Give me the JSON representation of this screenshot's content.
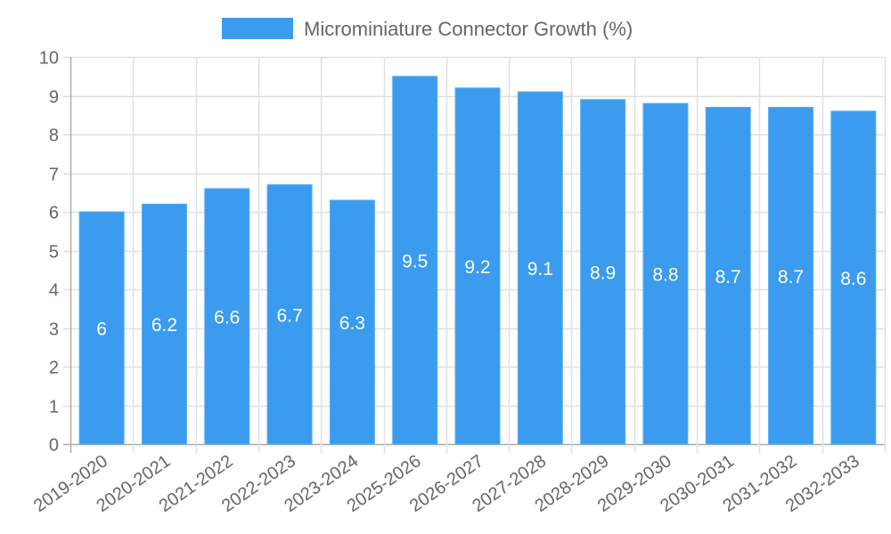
{
  "chart_data": {
    "type": "bar",
    "title": "",
    "xlabel": "",
    "ylabel": "",
    "ylim": [
      0,
      10
    ],
    "yticks": [
      0,
      1,
      2,
      3,
      4,
      5,
      6,
      7,
      8,
      9,
      10
    ],
    "grid": true,
    "legend_position": "top",
    "categories": [
      "2019-2020",
      "2020-2021",
      "2021-2022",
      "2022-2023",
      "2023-2024",
      "2025-2026",
      "2026-2027",
      "2027-2028",
      "2028-2029",
      "2029-2030",
      "2030-2031",
      "2031-2032",
      "2032-2033"
    ],
    "series": [
      {
        "name": "Microminiature Connector Growth (%)",
        "color": "#3a9bef",
        "values": [
          6,
          6.2,
          6.6,
          6.7,
          6.3,
          9.5,
          9.2,
          9.1,
          8.9,
          8.8,
          8.7,
          8.7,
          8.6
        ]
      }
    ]
  },
  "legend": {
    "label": "Microminiature Connector Growth (%)"
  }
}
